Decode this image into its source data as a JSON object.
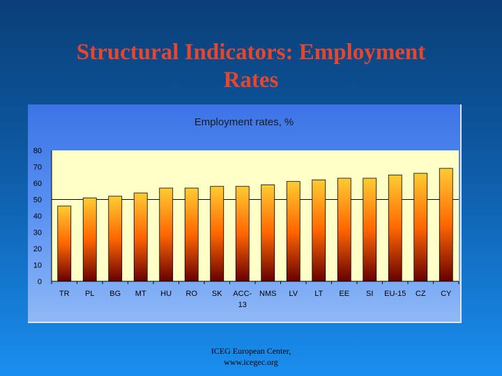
{
  "slide": {
    "title_line1": "Structural Indicators: Employment",
    "title_line2": "Rates",
    "footer_line1": "ICEG European Center,",
    "footer_line2": "www.icegec.org"
  },
  "chart_data": {
    "type": "bar",
    "title": "Employment rates, %",
    "xlabel": "",
    "ylabel": "",
    "categories": [
      "TR",
      "PL",
      "BG",
      "MT",
      "HU",
      "RO",
      "SK",
      "ACC-13",
      "NMS",
      "LV",
      "LT",
      "EE",
      "SI",
      "EU-15",
      "CZ",
      "CY"
    ],
    "category_labels": [
      [
        "TR"
      ],
      [
        "PL"
      ],
      [
        "BG"
      ],
      [
        "MT"
      ],
      [
        "HU"
      ],
      [
        "RO"
      ],
      [
        "SK"
      ],
      [
        "ACC-",
        "13"
      ],
      [
        "NMS"
      ],
      [
        "LV"
      ],
      [
        "LT"
      ],
      [
        "EE"
      ],
      [
        "SI"
      ],
      [
        "EU-15"
      ],
      [
        "CZ"
      ],
      [
        "CY"
      ]
    ],
    "values": [
      46,
      51,
      52,
      54,
      57,
      57,
      58,
      58,
      59,
      61,
      62,
      63,
      63,
      65,
      66,
      69
    ],
    "ylim": [
      0,
      80
    ],
    "yticks": [
      "0",
      "10",
      "20",
      "30",
      "40",
      "50",
      "60",
      "70",
      "80"
    ],
    "gridlines": [
      50
    ],
    "grid": false,
    "legend": "none",
    "colors": {
      "plot_background": "#ffffc8",
      "bar_top": "#ffcc33",
      "bar_mid": "#ff6600",
      "bar_bottom": "#660000",
      "title_color": "#1a1a1a",
      "axis_color": "#000000"
    }
  }
}
